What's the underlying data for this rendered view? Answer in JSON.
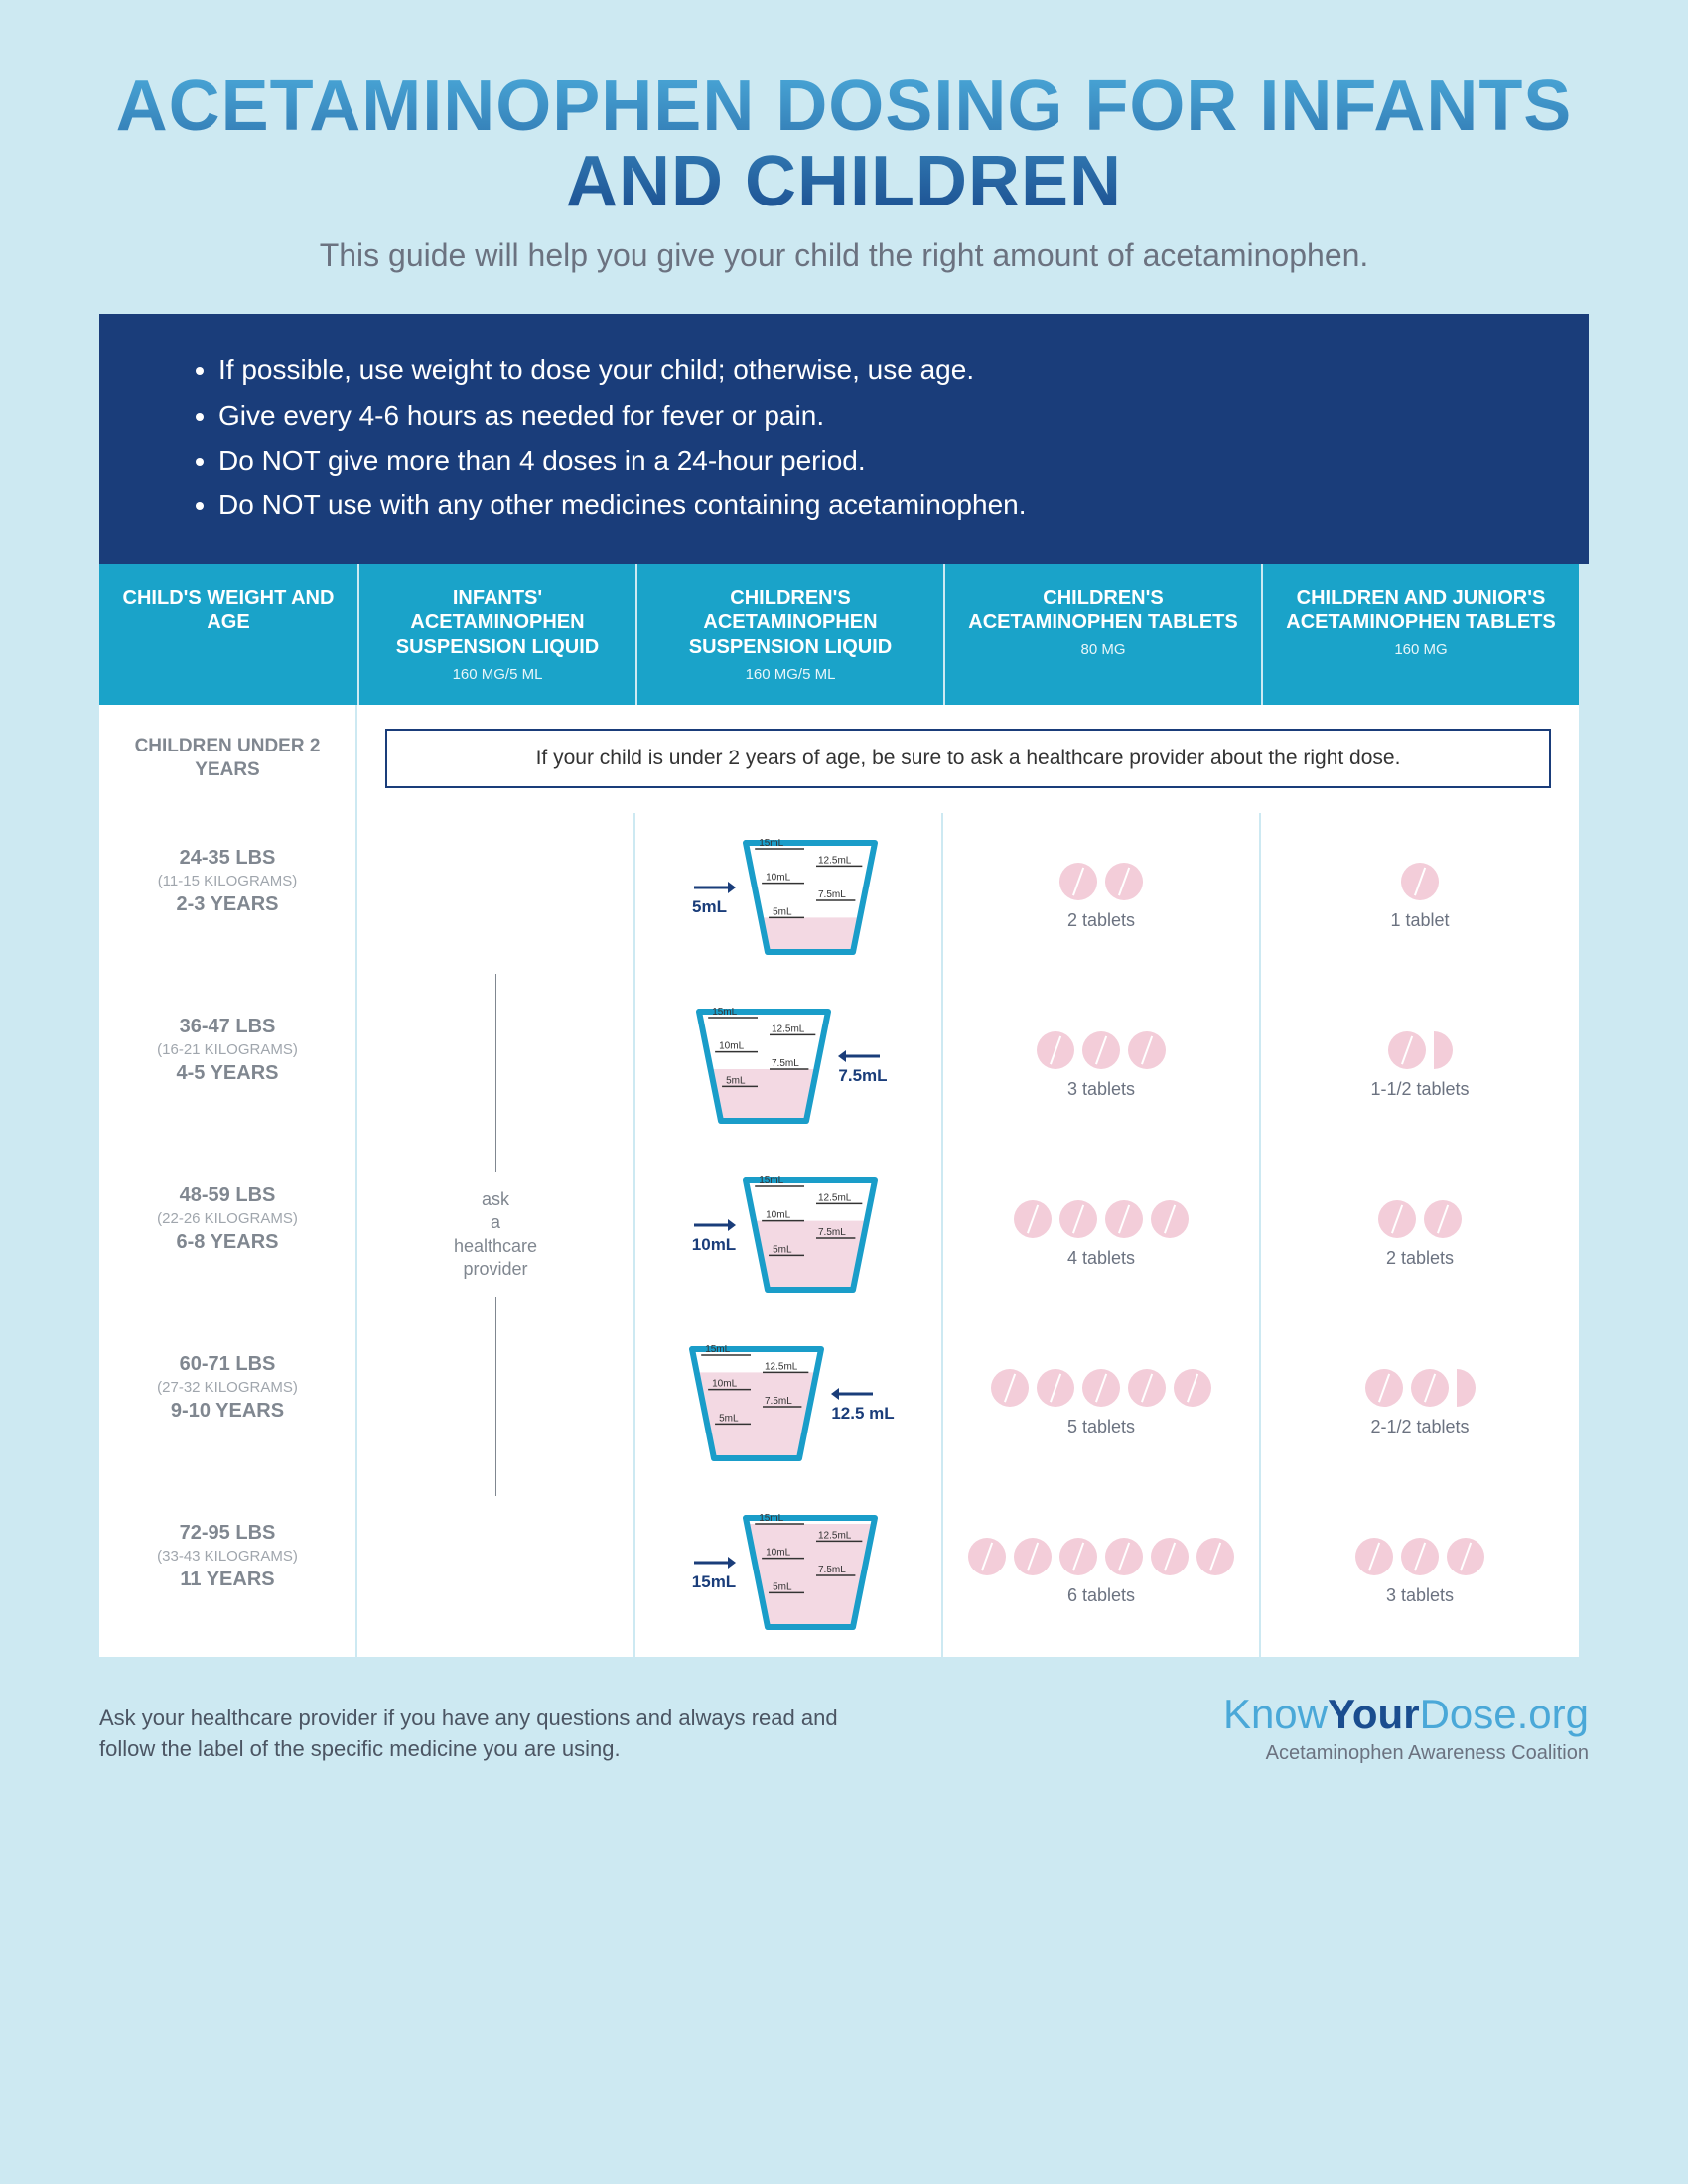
{
  "title": "ACETAMINOPHEN DOSING FOR INFANTS AND CHILDREN",
  "subtitle": "This guide will help you give your child the right amount of acetaminophen.",
  "tips": [
    "If possible, use weight to dose your child; otherwise, use age.",
    "Give every 4-6 hours as needed for fever or pain.",
    "Do NOT give more than 4 doses in a 24-hour period.",
    "Do NOT use with any other medicines containing acetaminophen."
  ],
  "columns": {
    "weight_age": "CHILD'S WEIGHT AND AGE",
    "infants": {
      "title": "INFANTS' ACETAMINOPHEN SUSPENSION LIQUID",
      "meta": "160 MG/5 ML"
    },
    "child_liquid": {
      "title": "CHILDREN'S ACETAMINOPHEN SUSPENSION LIQUID",
      "meta": "160 MG/5 ML"
    },
    "child_tablets": {
      "title": "CHILDREN'S ACETAMINOPHEN TABLETS",
      "meta": "80 MG"
    },
    "junior_tablets": {
      "title": "CHILDREN AND JUNIOR'S ACETAMINOPHEN TABLETS",
      "meta": "160 MG"
    }
  },
  "under2": {
    "label": "CHILDREN UNDER 2 YEARS",
    "note": "If your child is under 2 years of age, be sure to ask a healthcare provider about the right dose."
  },
  "infants_note": "ask a healthcare provider",
  "cup_style": {
    "outline_color": "#1a9dc9",
    "fill_color": "#f3d9e3",
    "arrow_color": "#1a3d7a",
    "tick_color": "#333333",
    "capacity_ml": 15,
    "ticks_left": [
      "15mL",
      "10mL",
      "5mL"
    ],
    "ticks_right": [
      "12.5mL",
      "7.5mL"
    ]
  },
  "pill_style": {
    "fill": "#f3cdd9",
    "slash": "#ffffff"
  },
  "rows": [
    {
      "lbs": "24-35 LBS",
      "kg": "(11-15 KILOGRAMS)",
      "years": "2-3 YEARS",
      "liquid_ml": 5,
      "liquid_label": "5mL",
      "arrow_side": "left",
      "tablets80": {
        "count": 2,
        "half": false,
        "label": "2 tablets"
      },
      "tablets160": {
        "count": 1,
        "half": false,
        "label": "1 tablet"
      }
    },
    {
      "lbs": "36-47 LBS",
      "kg": "(16-21 KILOGRAMS)",
      "years": "4-5 YEARS",
      "liquid_ml": 7.5,
      "liquid_label": "7.5mL",
      "arrow_side": "right",
      "tablets80": {
        "count": 3,
        "half": false,
        "label": "3 tablets"
      },
      "tablets160": {
        "count": 1,
        "half": true,
        "label": "1-1/2 tablets"
      }
    },
    {
      "lbs": "48-59 LBS",
      "kg": "(22-26 KILOGRAMS)",
      "years": "6-8 YEARS",
      "liquid_ml": 10,
      "liquid_label": "10mL",
      "arrow_side": "left",
      "tablets80": {
        "count": 4,
        "half": false,
        "label": "4 tablets"
      },
      "tablets160": {
        "count": 2,
        "half": false,
        "label": "2 tablets"
      }
    },
    {
      "lbs": "60-71 LBS",
      "kg": "(27-32 KILOGRAMS)",
      "years": "9-10 YEARS",
      "liquid_ml": 12.5,
      "liquid_label": "12.5 mL",
      "arrow_side": "right",
      "tablets80": {
        "count": 5,
        "half": false,
        "label": "5 tablets"
      },
      "tablets160": {
        "count": 2,
        "half": true,
        "label": "2-1/2 tablets"
      }
    },
    {
      "lbs": "72-95 LBS",
      "kg": "(33-43 KILOGRAMS)",
      "years": "11 YEARS",
      "liquid_ml": 15,
      "liquid_label": "15mL",
      "arrow_side": "left",
      "tablets80": {
        "count": 6,
        "half": false,
        "label": "6 tablets"
      },
      "tablets160": {
        "count": 3,
        "half": false,
        "label": "3 tablets"
      }
    }
  ],
  "footer": {
    "disclaimer": "Ask your healthcare provider if you have any questions and always read and follow the label of the specific medicine you are using.",
    "brand_plain1": "Know",
    "brand_bold": "Your",
    "brand_plain2": "Dose",
    "brand_suffix": ".org",
    "tagline": "Acetaminophen Awareness Coalition"
  },
  "colors": {
    "page_bg": "#cde9f2",
    "tips_bg": "#1a3d7a",
    "header_bg": "#1aa3c9",
    "title_gradient_from": "#4aa8d8",
    "title_gradient_to": "#1a4d8f"
  }
}
